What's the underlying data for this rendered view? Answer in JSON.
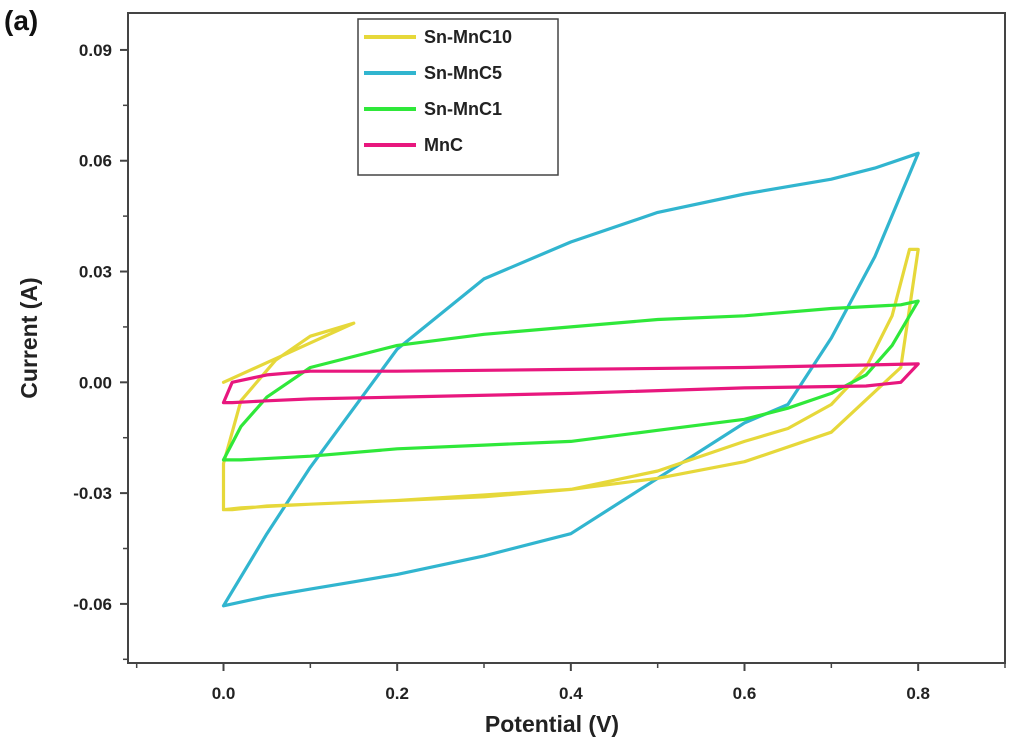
{
  "panel_label": "(a)",
  "chart_data": {
    "type": "line",
    "title": "",
    "xlabel": "Potential (V)",
    "ylabel": "Current (A)",
    "xlim": [
      -0.11,
      0.9
    ],
    "ylim": [
      -0.076,
      0.1
    ],
    "x_ticks": [
      "0.0",
      "0.2",
      "0.4",
      "0.6",
      "0.8"
    ],
    "x_tick_values": [
      0.0,
      0.2,
      0.4,
      0.6,
      0.8
    ],
    "y_ticks": [
      "0.09",
      "0.06",
      "0.03",
      "0.00",
      "-0.03",
      "-0.06"
    ],
    "y_tick_values": [
      0.09,
      0.06,
      0.03,
      0.0,
      -0.03,
      -0.06
    ],
    "grid": false,
    "legend_position": "top-center",
    "series": [
      {
        "name": "Sn-MnC10",
        "color": "#e6d83a",
        "x": [
          0.0,
          0.01,
          0.05,
          0.1,
          0.15,
          0.2,
          0.3,
          0.4,
          0.5,
          0.6,
          0.7,
          0.78,
          0.8,
          0.79,
          0.77,
          0.74,
          0.7,
          0.65,
          0.6,
          0.5,
          0.4,
          0.3,
          0.2,
          0.1,
          0.02,
          0.0,
          0.0,
          0.02,
          0.06,
          0.1,
          0.15,
          0.0
        ],
        "y": [
          -0.0345,
          -0.0345,
          -0.0335,
          -0.033,
          -0.0325,
          -0.032,
          -0.0305,
          -0.029,
          -0.026,
          -0.0215,
          -0.0135,
          0.004,
          0.036,
          0.036,
          0.018,
          0.004,
          -0.006,
          -0.0125,
          -0.016,
          -0.024,
          -0.029,
          -0.031,
          -0.032,
          -0.033,
          -0.034,
          -0.0345,
          -0.022,
          -0.005,
          0.006,
          0.0125,
          0.016,
          0.0
        ]
      },
      {
        "name": "Sn-MnC5",
        "color": "#31b5cf",
        "x": [
          0.0,
          0.05,
          0.1,
          0.2,
          0.3,
          0.4,
          0.5,
          0.6,
          0.7,
          0.75,
          0.8,
          0.8,
          0.75,
          0.7,
          0.65,
          0.6,
          0.5,
          0.4,
          0.3,
          0.2,
          0.15,
          0.1,
          0.05,
          0.0
        ],
        "y": [
          -0.0605,
          -0.041,
          -0.023,
          0.009,
          0.028,
          0.038,
          0.046,
          0.051,
          0.055,
          0.058,
          0.062,
          0.062,
          0.034,
          0.012,
          -0.006,
          -0.011,
          -0.026,
          -0.041,
          -0.047,
          -0.052,
          -0.054,
          -0.056,
          -0.058,
          -0.0605
        ]
      },
      {
        "name": "Sn-MnC1",
        "color": "#2fe83a",
        "x": [
          0.0,
          0.02,
          0.05,
          0.1,
          0.2,
          0.3,
          0.4,
          0.5,
          0.6,
          0.7,
          0.78,
          0.8,
          0.8,
          0.77,
          0.74,
          0.7,
          0.65,
          0.6,
          0.5,
          0.4,
          0.3,
          0.2,
          0.1,
          0.02,
          0.0
        ],
        "y": [
          -0.021,
          -0.012,
          -0.004,
          0.004,
          0.01,
          0.013,
          0.015,
          0.017,
          0.018,
          0.02,
          0.021,
          0.022,
          0.022,
          0.01,
          0.002,
          -0.003,
          -0.007,
          -0.01,
          -0.013,
          -0.016,
          -0.017,
          -0.018,
          -0.02,
          -0.021,
          -0.021
        ]
      },
      {
        "name": "MnC",
        "color": "#e8177e",
        "x": [
          0.0,
          0.01,
          0.05,
          0.1,
          0.2,
          0.4,
          0.6,
          0.8,
          0.8,
          0.78,
          0.74,
          0.6,
          0.4,
          0.2,
          0.1,
          0.05,
          0.01,
          0.0
        ],
        "y": [
          -0.0055,
          0.0,
          0.002,
          0.003,
          0.003,
          0.0035,
          0.004,
          0.005,
          0.005,
          0.0,
          -0.001,
          -0.0015,
          -0.003,
          -0.004,
          -0.0045,
          -0.005,
          -0.0055,
          -0.0055
        ]
      }
    ]
  }
}
